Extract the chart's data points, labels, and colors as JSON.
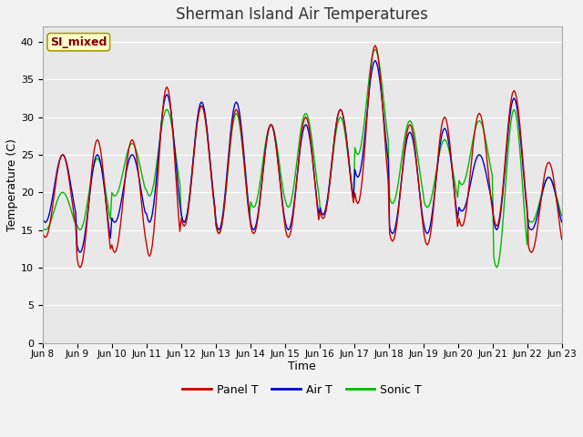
{
  "title": "Sherman Island Air Temperatures",
  "xlabel": "Time",
  "ylabel": "Temperature (C)",
  "annotation": "SI_mixed",
  "annotation_color": "#800000",
  "annotation_bg": "#ffffcc",
  "ylim": [
    0,
    42
  ],
  "yticks": [
    0,
    5,
    10,
    15,
    20,
    25,
    30,
    35,
    40
  ],
  "x_labels": [
    "Jun 8",
    "Jun 9",
    "Jun 10",
    "Jun 11",
    "Jun 12",
    "Jun 13",
    "Jun 14",
    "Jun 15",
    "Jun 16",
    "Jun 17",
    "Jun 18",
    "Jun 19",
    "Jun 20",
    "Jun 21",
    "Jun 22",
    "Jun 23"
  ],
  "color_panel": "#cc0000",
  "color_air": "#0000cc",
  "color_sonic": "#00bb00",
  "bg_color": "#e8e8e8",
  "grid_color": "#ffffff",
  "legend_labels": [
    "Panel T",
    "Air T",
    "Sonic T"
  ],
  "panel_peaks": [
    25.0,
    27.0,
    27.0,
    34.0,
    31.5,
    31.0,
    29.0,
    30.0,
    31.0,
    39.5,
    29.0,
    30.0,
    30.5,
    33.5,
    24.0,
    17.0
  ],
  "panel_troughs": [
    14.0,
    10.0,
    12.0,
    11.5,
    15.5,
    14.5,
    14.5,
    14.0,
    16.5,
    18.5,
    13.5,
    13.0,
    15.5,
    15.5,
    12.0,
    12.0
  ],
  "air_peaks": [
    25.0,
    25.0,
    25.0,
    33.0,
    32.0,
    32.0,
    29.0,
    29.0,
    31.0,
    37.5,
    28.0,
    28.5,
    25.0,
    32.5,
    22.0,
    17.0
  ],
  "air_troughs": [
    16.0,
    12.0,
    16.0,
    16.0,
    16.0,
    15.0,
    15.0,
    15.0,
    17.0,
    22.0,
    14.5,
    14.5,
    17.5,
    15.0,
    15.0,
    12.0
  ],
  "sonic_peaks": [
    20.0,
    24.5,
    26.5,
    31.0,
    31.5,
    30.5,
    29.0,
    30.5,
    30.0,
    39.0,
    29.5,
    27.0,
    29.5,
    31.0,
    22.0,
    16.5
  ],
  "sonic_troughs": [
    15.0,
    15.0,
    19.5,
    19.5,
    16.0,
    14.5,
    18.0,
    18.0,
    17.0,
    25.0,
    18.5,
    18.0,
    21.0,
    10.0,
    16.0,
    12.0
  ],
  "n_days": 15,
  "pts_per_day": 24,
  "peak_hour": 14,
  "figwidth": 6.4,
  "figheight": 4.8,
  "dpi": 100
}
